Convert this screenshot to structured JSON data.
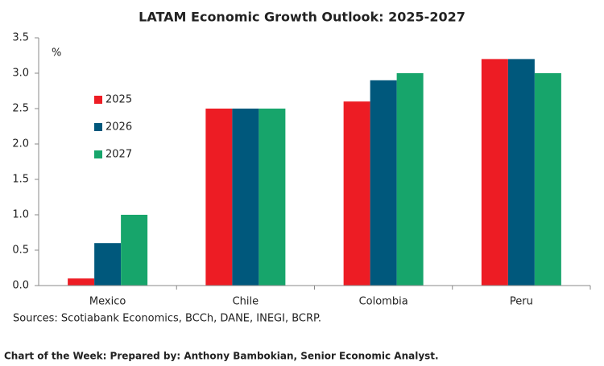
{
  "chart_data": {
    "type": "bar",
    "title": "LATAM Economic Growth Outlook: 2025-2027",
    "y_label": "%",
    "categories": [
      "Mexico",
      "Chile",
      "Colombia",
      "Peru"
    ],
    "series": [
      {
        "name": "2025",
        "color": "#ed1c24",
        "values": [
          0.1,
          2.5,
          2.6,
          3.2
        ]
      },
      {
        "name": "2026",
        "color": "#00587c",
        "values": [
          0.6,
          2.5,
          2.9,
          3.2
        ]
      },
      {
        "name": "2027",
        "color": "#17a56b",
        "values": [
          1.0,
          2.5,
          3.0,
          3.0
        ]
      }
    ],
    "ylim": [
      0,
      3.5
    ],
    "yticks": [
      {
        "value": 0,
        "label": "0.0"
      },
      0.5,
      {
        "value": 1,
        "label": "1.0"
      },
      1.5,
      {
        "value": 2,
        "label": "2.0"
      },
      2.5,
      {
        "value": 3,
        "label": "3.0"
      },
      3.5
    ],
    "grid": false,
    "legend_position": "upper left",
    "source": "Sources: Scotiabank Economics, BCCh, DANE, INEGI, BCRP."
  },
  "footer": "Chart of the Week:  Prepared by: Anthony Bambokian, Senior Economic Analyst."
}
